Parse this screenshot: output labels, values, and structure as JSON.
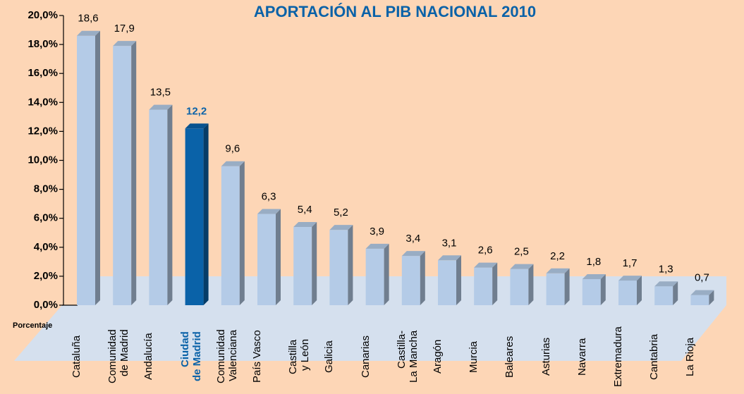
{
  "chart_data": {
    "type": "bar",
    "title": "APORTACIÓN AL PIB NACIONAL 2010",
    "y_label": "Porcentaje",
    "categories": [
      "Cataluña",
      "Comunidad\nde Madrid",
      "Andalucía",
      "Ciudad\nde Madrid",
      "Comunidad\nValenciana",
      "País Vasco",
      "Castilla\ny León",
      "Galicia",
      "Canarias",
      "Castilla-\nLa Mancha",
      "Aragón",
      "Murcia",
      "Baleares",
      "Asturias",
      "Navarra",
      "Extremadura",
      "Cantabria",
      "La Rioja"
    ],
    "values": [
      18.6,
      17.9,
      13.5,
      12.2,
      9.6,
      6.3,
      5.4,
      5.2,
      3.9,
      3.4,
      3.1,
      2.6,
      2.5,
      2.2,
      1.8,
      1.7,
      1.3,
      0.7
    ],
    "value_labels": [
      "18,6",
      "17,9",
      "13,5",
      "12,2",
      "9,6",
      "6,3",
      "5,4",
      "5,2",
      "3,9",
      "3,4",
      "3,1",
      "2,6",
      "2,5",
      "2,2",
      "1,8",
      "1,7",
      "1,3",
      "0,7"
    ],
    "color": "#b4cbe7",
    "colors": [
      "#b4cbe7",
      "#b4cbe7",
      "#b4cbe7",
      "#0a62a8",
      "#b4cbe7",
      "#b4cbe7",
      "#b4cbe7",
      "#b4cbe7",
      "#b4cbe7",
      "#b4cbe7",
      "#b4cbe7",
      "#b4cbe7",
      "#b4cbe7",
      "#b4cbe7",
      "#b4cbe7",
      "#b4cbe7",
      "#b4cbe7",
      "#b4cbe7"
    ],
    "ylim": [
      0,
      20
    ],
    "yticks": [
      {
        "value": 0,
        "label": "0,0%"
      },
      {
        "value": 2,
        "label": "2,0%"
      },
      {
        "value": 4,
        "label": "4,0%"
      },
      {
        "value": 6,
        "label": "6,0%"
      },
      {
        "value": 8,
        "label": "8,0%"
      },
      {
        "value": 10,
        "label": "10,0%"
      },
      {
        "value": 12,
        "label": "12,0%"
      },
      {
        "value": 14,
        "label": "14,0%"
      },
      {
        "value": 16,
        "label": "16,0%"
      },
      {
        "value": 18,
        "label": "18,0%"
      },
      {
        "value": 20,
        "label": "20,0%"
      }
    ]
  }
}
